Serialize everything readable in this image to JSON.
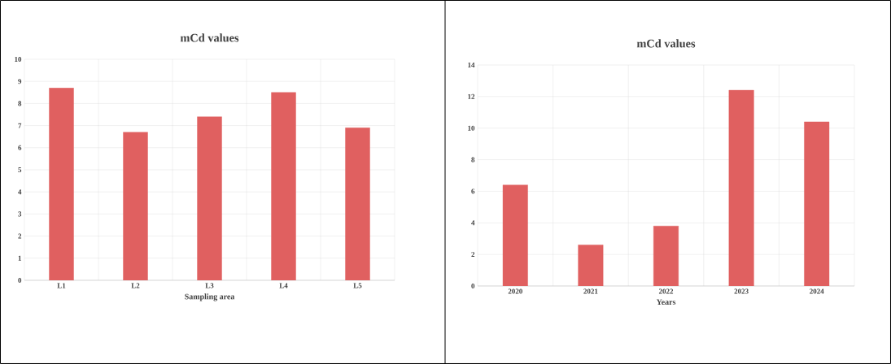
{
  "chart_data": [
    {
      "type": "bar",
      "title": "mCd values",
      "xlabel": "Sampling area",
      "categories": [
        "L1",
        "L2",
        "L3",
        "L4",
        "L5"
      ],
      "values": [
        8.7,
        6.7,
        7.4,
        8.5,
        6.9
      ],
      "color": "#e06060",
      "ylim": [
        0,
        10
      ],
      "yticks": [
        0,
        1,
        2,
        3,
        4,
        5,
        6,
        7,
        8,
        9,
        10
      ],
      "grid": true
    },
    {
      "type": "bar",
      "title": "mCd values",
      "xlabel": "Years",
      "categories": [
        "2020",
        "2021",
        "2022",
        "2023",
        "2024"
      ],
      "values": [
        6.4,
        2.6,
        3.8,
        12.4,
        10.4
      ],
      "color": "#e06060",
      "ylim": [
        0,
        14
      ],
      "yticks": [
        0,
        2,
        4,
        6,
        8,
        10,
        12,
        14
      ],
      "grid": true
    }
  ]
}
